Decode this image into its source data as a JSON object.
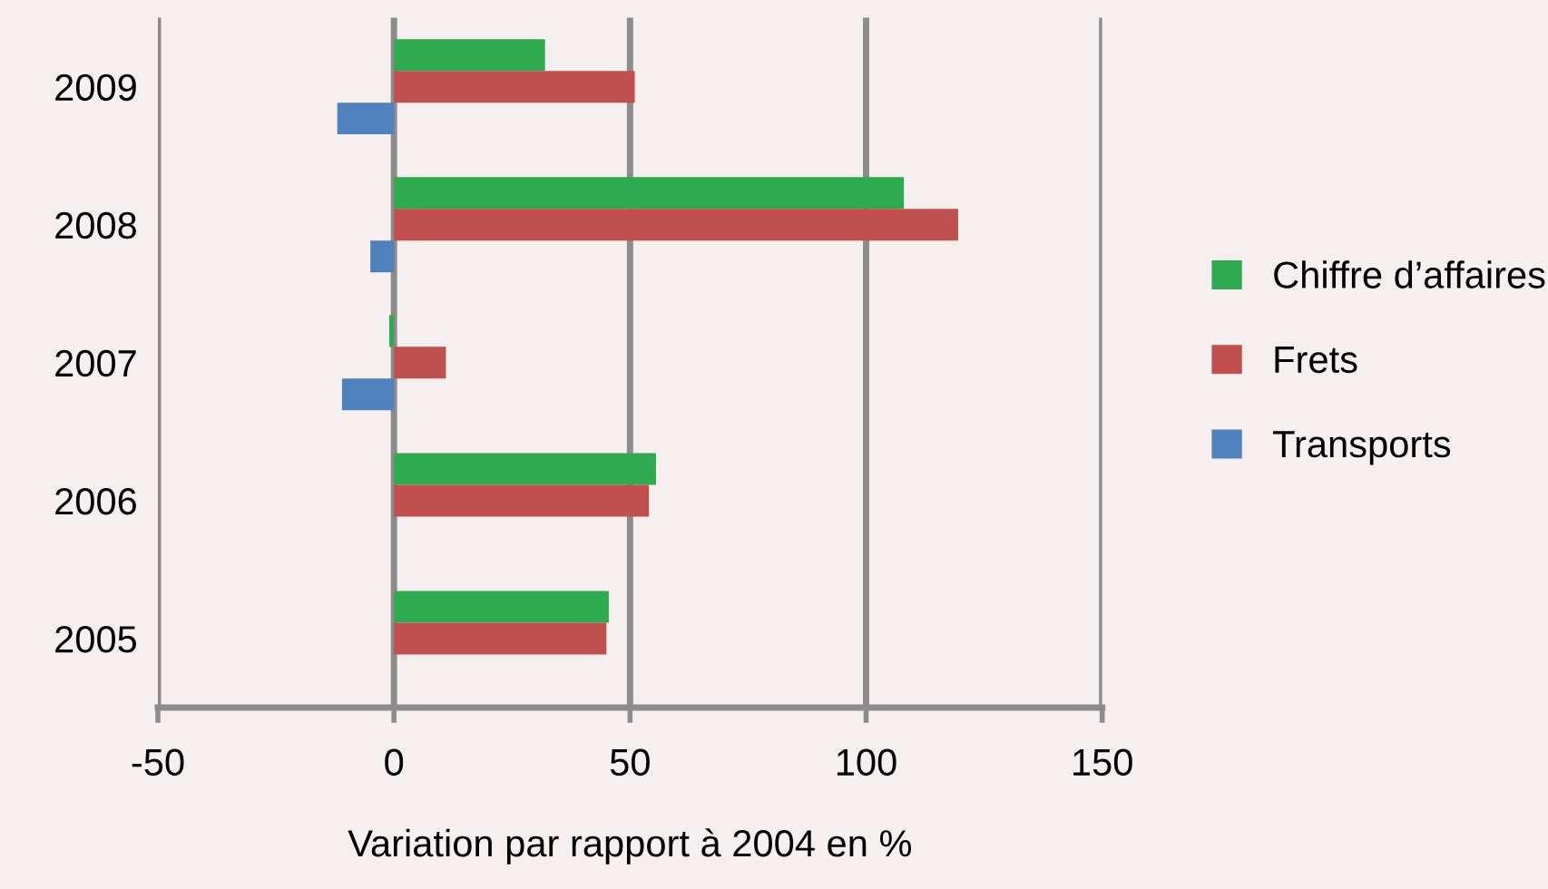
{
  "chart_data": {
    "type": "bar",
    "orientation": "horizontal",
    "xlabel": "Variation par rapport à 2004 en %",
    "categories": [
      "2009",
      "2008",
      "2007",
      "2006",
      "2005"
    ],
    "series": [
      {
        "name": "Chiffre d’affaires",
        "color": "#2eaa4f",
        "values": [
          32,
          108,
          -1,
          55.5,
          45.5
        ]
      },
      {
        "name": "Frets",
        "color": "#c0504d",
        "values": [
          51,
          119.5,
          11,
          54,
          45
        ]
      },
      {
        "name": "Transports",
        "color": "#4f81bd",
        "values": [
          -12,
          -5,
          -11,
          null,
          null
        ]
      }
    ],
    "xlim": [
      -50,
      150
    ],
    "xticks": [
      -50,
      0,
      50,
      100,
      150
    ],
    "grid": "x",
    "legend": "right"
  }
}
